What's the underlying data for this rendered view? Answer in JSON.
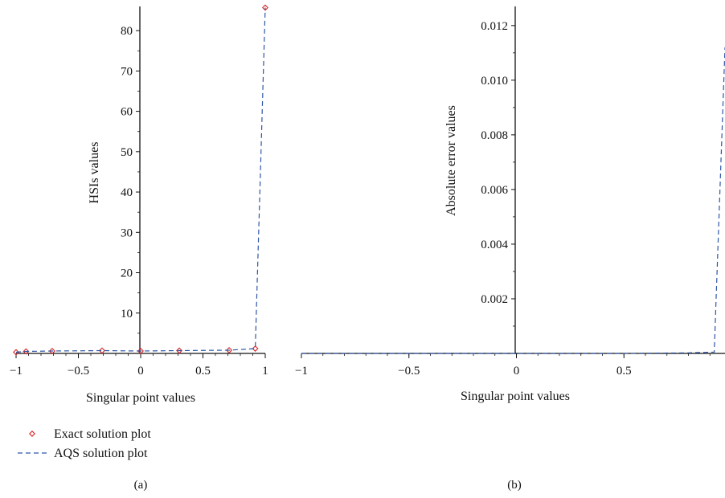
{
  "chart_data": [
    {
      "panel_label": "(a)",
      "type": "line",
      "xlabel": "Singular point values",
      "ylabel": "HSIs values",
      "xlim": [
        -1,
        1
      ],
      "ylim": [
        0,
        86
      ],
      "x_ticks": [
        -1,
        -0.5,
        0,
        0.5,
        1
      ],
      "x_tick_labels": [
        "−1",
        "−0.5",
        "0",
        "0.5",
        "1"
      ],
      "y_ticks": [
        10,
        20,
        30,
        40,
        50,
        60,
        70,
        80
      ],
      "y_tick_labels": [
        "10",
        "20",
        "30",
        "40",
        "50",
        "60",
        "70",
        "80"
      ],
      "grid": false,
      "series": [
        {
          "name": "Exact solution plot",
          "style": "markers",
          "marker": "diamond",
          "color": "#d62728",
          "x": [
            -1.0,
            -0.92,
            -0.71,
            -0.31,
            0.0,
            0.31,
            0.71,
            0.92,
            1.0
          ],
          "y": [
            0.3,
            0.5,
            0.6,
            0.7,
            0.6,
            0.7,
            0.8,
            1.2,
            85.7
          ]
        },
        {
          "name": "AQS solution plot",
          "style": "dashed",
          "color": "#2e56a6",
          "x": [
            -1.0,
            -0.92,
            -0.71,
            -0.31,
            0.0,
            0.31,
            0.71,
            0.92,
            1.0
          ],
          "y": [
            0.3,
            0.5,
            0.6,
            0.7,
            0.6,
            0.7,
            0.8,
            1.2,
            85.7
          ]
        }
      ],
      "legend": {
        "placement": "below",
        "entries": [
          {
            "label": "Exact solution plot",
            "kind": "marker"
          },
          {
            "label": "AQS solution plot",
            "kind": "dashed-line"
          }
        ]
      }
    },
    {
      "panel_label": "(b)",
      "type": "line",
      "xlabel": "Singular point values",
      "ylabel": "Absolute error values",
      "xlim": [
        -1,
        0.97
      ],
      "ylim": [
        0,
        0.0127
      ],
      "x_ticks": [
        -1,
        -0.5,
        0,
        0.5
      ],
      "x_tick_labels": [
        "−1",
        "−0.5",
        "0",
        "0.5"
      ],
      "y_ticks": [
        0.002,
        0.004,
        0.006,
        0.008,
        0.01,
        0.012
      ],
      "y_tick_labels": [
        "0.002",
        "0.004",
        "0.006",
        "0.008",
        "0.010",
        "0.012"
      ],
      "grid": false,
      "series": [
        {
          "style": "dashed",
          "color": "#2e56a6",
          "x": [
            -1.0,
            -0.5,
            0.0,
            0.5,
            0.8,
            0.92,
            0.97
          ],
          "y": [
            0.0,
            0.0,
            0.0,
            0.0,
            2e-05,
            5e-05,
            0.0112
          ]
        }
      ]
    }
  ]
}
